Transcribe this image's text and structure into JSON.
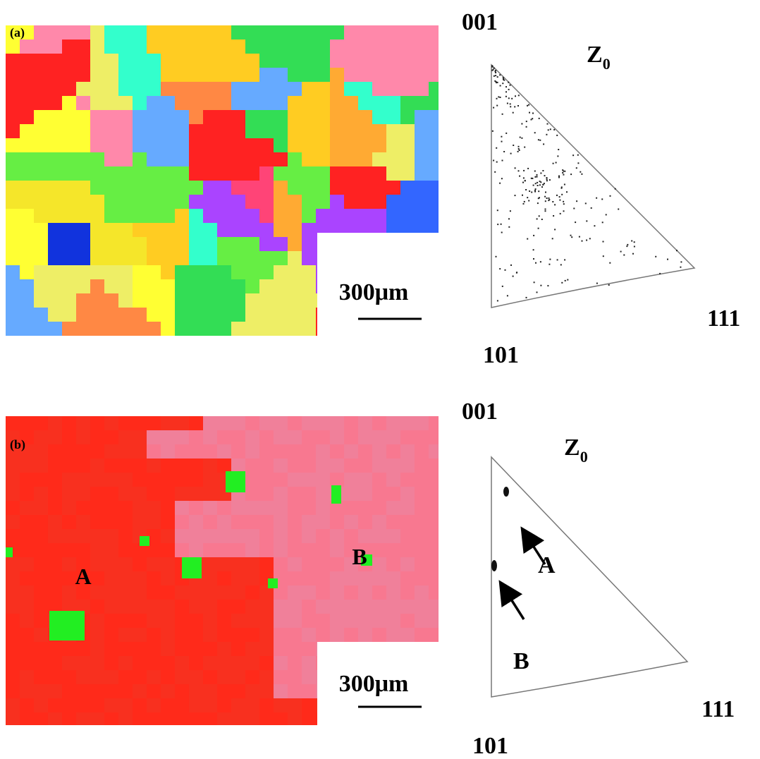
{
  "panels": [
    {
      "label": "(a)",
      "scale_bar": "300μm",
      "pole_figure": {
        "top": "001",
        "axis": {
          "symbol": "Z",
          "subscript": "0"
        },
        "right": "111",
        "bottom": "101"
      }
    },
    {
      "label": "(b)",
      "scale_bar": "300μm",
      "map_markers": [
        "A",
        "B"
      ],
      "pole_figure": {
        "top": "001",
        "axis": {
          "symbol": "Z",
          "subscript": "0"
        },
        "right": "111",
        "bottom": "101",
        "arrows": [
          "A",
          "B"
        ]
      }
    }
  ]
}
